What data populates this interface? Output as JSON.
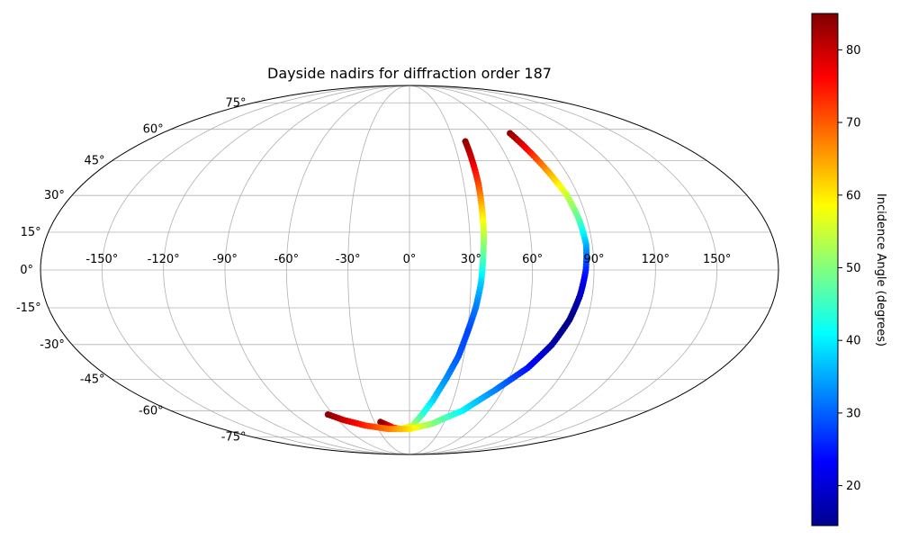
{
  "chart_data": {
    "type": "scatter",
    "projection": "mollweide",
    "title": "Dayside nadirs for diffraction order 187",
    "grid": true,
    "longitude_ticks": [
      -150,
      -120,
      -90,
      -60,
      -30,
      0,
      30,
      60,
      90,
      120,
      150
    ],
    "latitude_ticks": [
      -75,
      -60,
      -45,
      -30,
      -15,
      0,
      15,
      30,
      45,
      60,
      75
    ],
    "longitude_tick_labels": [
      "-150°",
      "-120°",
      "-90°",
      "-60°",
      "-30°",
      "0°",
      "30°",
      "60°",
      "90°",
      "120°",
      "150°"
    ],
    "latitude_tick_labels": [
      "-75°",
      "-60°",
      "-45°",
      "-30°",
      "-15°",
      "0°",
      "15°",
      "30°",
      "45°",
      "60°",
      "75°"
    ],
    "colorbar": {
      "label": "Incidence Angle (degrees)",
      "colormap": "jet",
      "range": [
        14.5,
        85
      ],
      "ticks": [
        20,
        30,
        40,
        50,
        60,
        70,
        80
      ]
    },
    "series": [
      {
        "points": [
          {
            "lon": 38,
            "lat": 54,
            "value": 84
          },
          {
            "lon": 38,
            "lat": 45,
            "value": 79
          },
          {
            "lon": 38,
            "lat": 35,
            "value": 72
          },
          {
            "lon": 37.5,
            "lat": 25,
            "value": 63
          },
          {
            "lon": 37,
            "lat": 15,
            "value": 55
          },
          {
            "lon": 36,
            "lat": 5,
            "value": 47
          },
          {
            "lon": 35,
            "lat": -5,
            "value": 38
          },
          {
            "lon": 33,
            "lat": -15,
            "value": 32
          },
          {
            "lon": 30,
            "lat": -25,
            "value": 28
          },
          {
            "lon": 27,
            "lat": -35,
            "value": 29
          },
          {
            "lon": 22,
            "lat": -45,
            "value": 33
          },
          {
            "lon": 16,
            "lat": -55,
            "value": 38
          },
          {
            "lon": 10,
            "lat": -62,
            "value": 44
          },
          {
            "lon": 3,
            "lat": -68,
            "value": 52
          },
          {
            "lon": -8,
            "lat": -70,
            "value": 62
          },
          {
            "lon": -16,
            "lat": -69,
            "value": 74
          },
          {
            "lon": -25,
            "lat": -66,
            "value": 84
          }
        ]
      },
      {
        "points": [
          {
            "lon": 73,
            "lat": 58,
            "value": 84
          },
          {
            "lon": 76,
            "lat": 50,
            "value": 76
          },
          {
            "lon": 80,
            "lat": 40,
            "value": 65
          },
          {
            "lon": 84,
            "lat": 30,
            "value": 55
          },
          {
            "lon": 86,
            "lat": 20,
            "value": 47
          },
          {
            "lon": 87,
            "lat": 10,
            "value": 36
          },
          {
            "lon": 86,
            "lat": 0,
            "value": 26
          },
          {
            "lon": 84,
            "lat": -10,
            "value": 19
          },
          {
            "lon": 81,
            "lat": -20,
            "value": 15
          },
          {
            "lon": 76,
            "lat": -30,
            "value": 17
          },
          {
            "lon": 68,
            "lat": -40,
            "value": 24
          },
          {
            "lon": 55,
            "lat": -50,
            "value": 32
          },
          {
            "lon": 40,
            "lat": -60,
            "value": 40
          },
          {
            "lon": 20,
            "lat": -67,
            "value": 50
          },
          {
            "lon": 0,
            "lat": -70,
            "value": 60
          },
          {
            "lon": -20,
            "lat": -70,
            "value": 67
          },
          {
            "lon": -40,
            "lat": -68,
            "value": 73
          },
          {
            "lon": -55,
            "lat": -65,
            "value": 79
          },
          {
            "lon": -64,
            "lat": -62,
            "value": 84
          }
        ]
      }
    ]
  }
}
